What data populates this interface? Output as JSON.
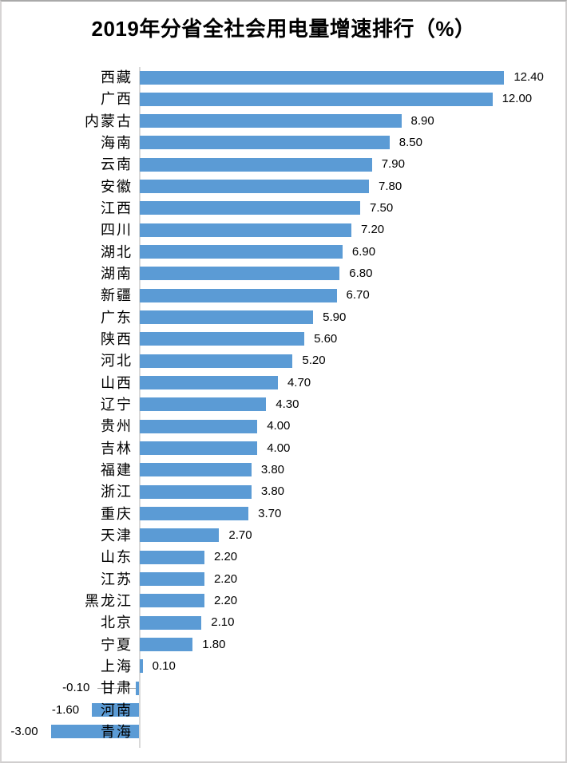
{
  "chart_data": {
    "type": "bar",
    "orientation": "horizontal",
    "title": "2019年分省全社会用电量增速排行（%）",
    "unit": "%",
    "xlabel": "",
    "ylabel": "",
    "xlim": [
      -3.0,
      12.4
    ],
    "grid": false,
    "legend": false,
    "data_labels": true,
    "bar_color": "#5B9BD5",
    "axis_line_color": "#D9D9D9",
    "leader_line_color": "#A6A6A6",
    "label_color": "#000000",
    "categories": [
      "西藏",
      "广西",
      "内蒙古",
      "海南",
      "云南",
      "安徽",
      "江西",
      "四川",
      "湖北",
      "湖南",
      "新疆",
      "广东",
      "陕西",
      "河北",
      "山西",
      "辽宁",
      "贵州",
      "吉林",
      "福建",
      "浙江",
      "重庆",
      "天津",
      "山东",
      "江苏",
      "黑龙江",
      "北京",
      "宁夏",
      "上海",
      "甘肃",
      "河南",
      "青海"
    ],
    "values": [
      12.4,
      12.0,
      8.9,
      8.5,
      7.9,
      7.8,
      7.5,
      7.2,
      6.9,
      6.8,
      6.7,
      5.9,
      5.6,
      5.2,
      4.7,
      4.3,
      4.0,
      4.0,
      3.8,
      3.8,
      3.7,
      2.7,
      2.2,
      2.2,
      2.2,
      2.1,
      1.8,
      0.1,
      -0.1,
      -1.6,
      -3.0
    ],
    "value_labels": [
      "12.40",
      "12.00",
      "8.90",
      "8.50",
      "7.90",
      "7.80",
      "7.50",
      "7.20",
      "6.90",
      "6.80",
      "6.70",
      "5.90",
      "5.60",
      "5.20",
      "4.70",
      "4.30",
      "4.00",
      "4.00",
      "3.80",
      "3.80",
      "3.70",
      "2.70",
      "2.20",
      "2.20",
      "2.20",
      "2.10",
      "1.80",
      "0.10",
      "-0.10",
      "-1.60",
      "-3.00"
    ],
    "leader_line_category": "甘肃"
  }
}
